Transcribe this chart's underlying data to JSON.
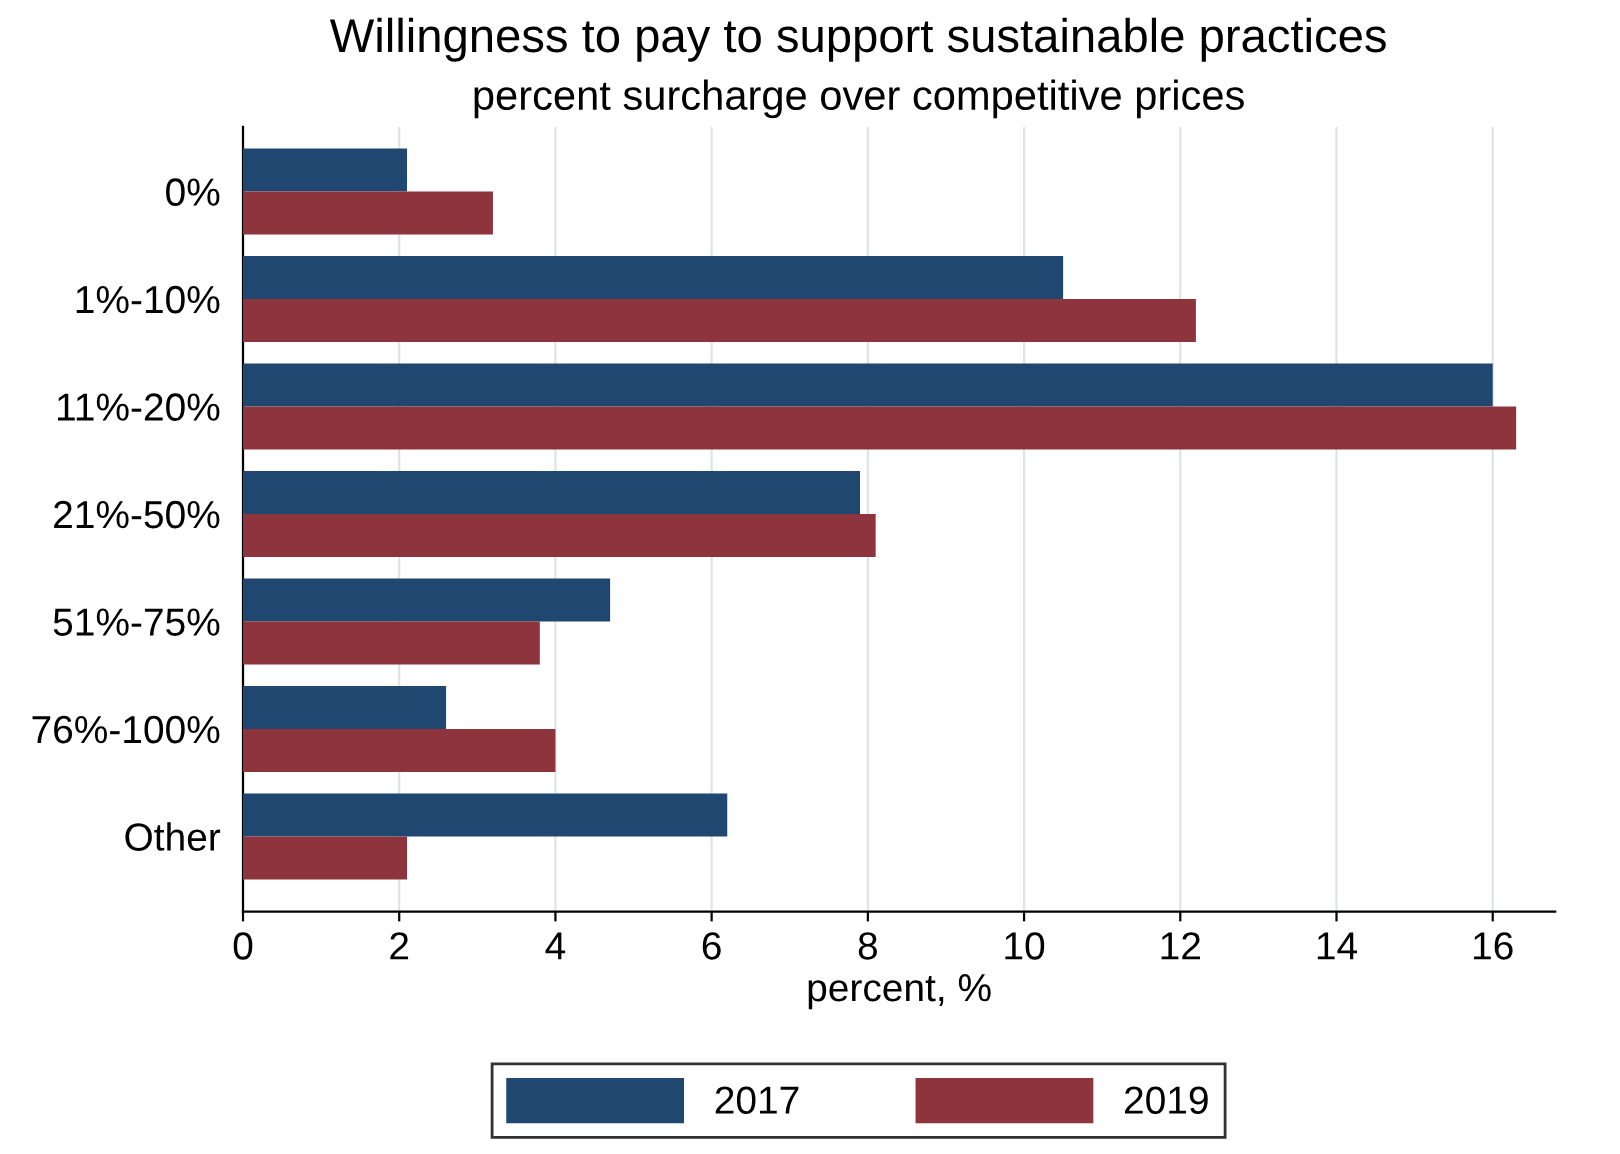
{
  "chart_data": {
    "type": "bar",
    "orientation": "horizontal",
    "title": "Willingness to pay to support sustainable practices",
    "subtitle": "percent surcharge over competitive prices",
    "xlabel": "percent, %",
    "categories": [
      "0%",
      "1%-10%",
      "11%-20%",
      "21%-50%",
      "51%-75%",
      "76%-100%",
      "Other"
    ],
    "series": [
      {
        "name": "2017",
        "color": "#1f4770",
        "values": [
          2.1,
          10.5,
          16.0,
          7.9,
          4.7,
          2.6,
          6.2
        ]
      },
      {
        "name": "2019",
        "color": "#8e343c",
        "values": [
          3.2,
          12.2,
          16.3,
          8.1,
          3.8,
          4.0,
          2.1
        ]
      }
    ],
    "xlim": [
      0,
      16.8
    ],
    "xticks": [
      0,
      2,
      4,
      6,
      8,
      10,
      12,
      14,
      16
    ],
    "grid": "x",
    "legend": "bottom"
  }
}
